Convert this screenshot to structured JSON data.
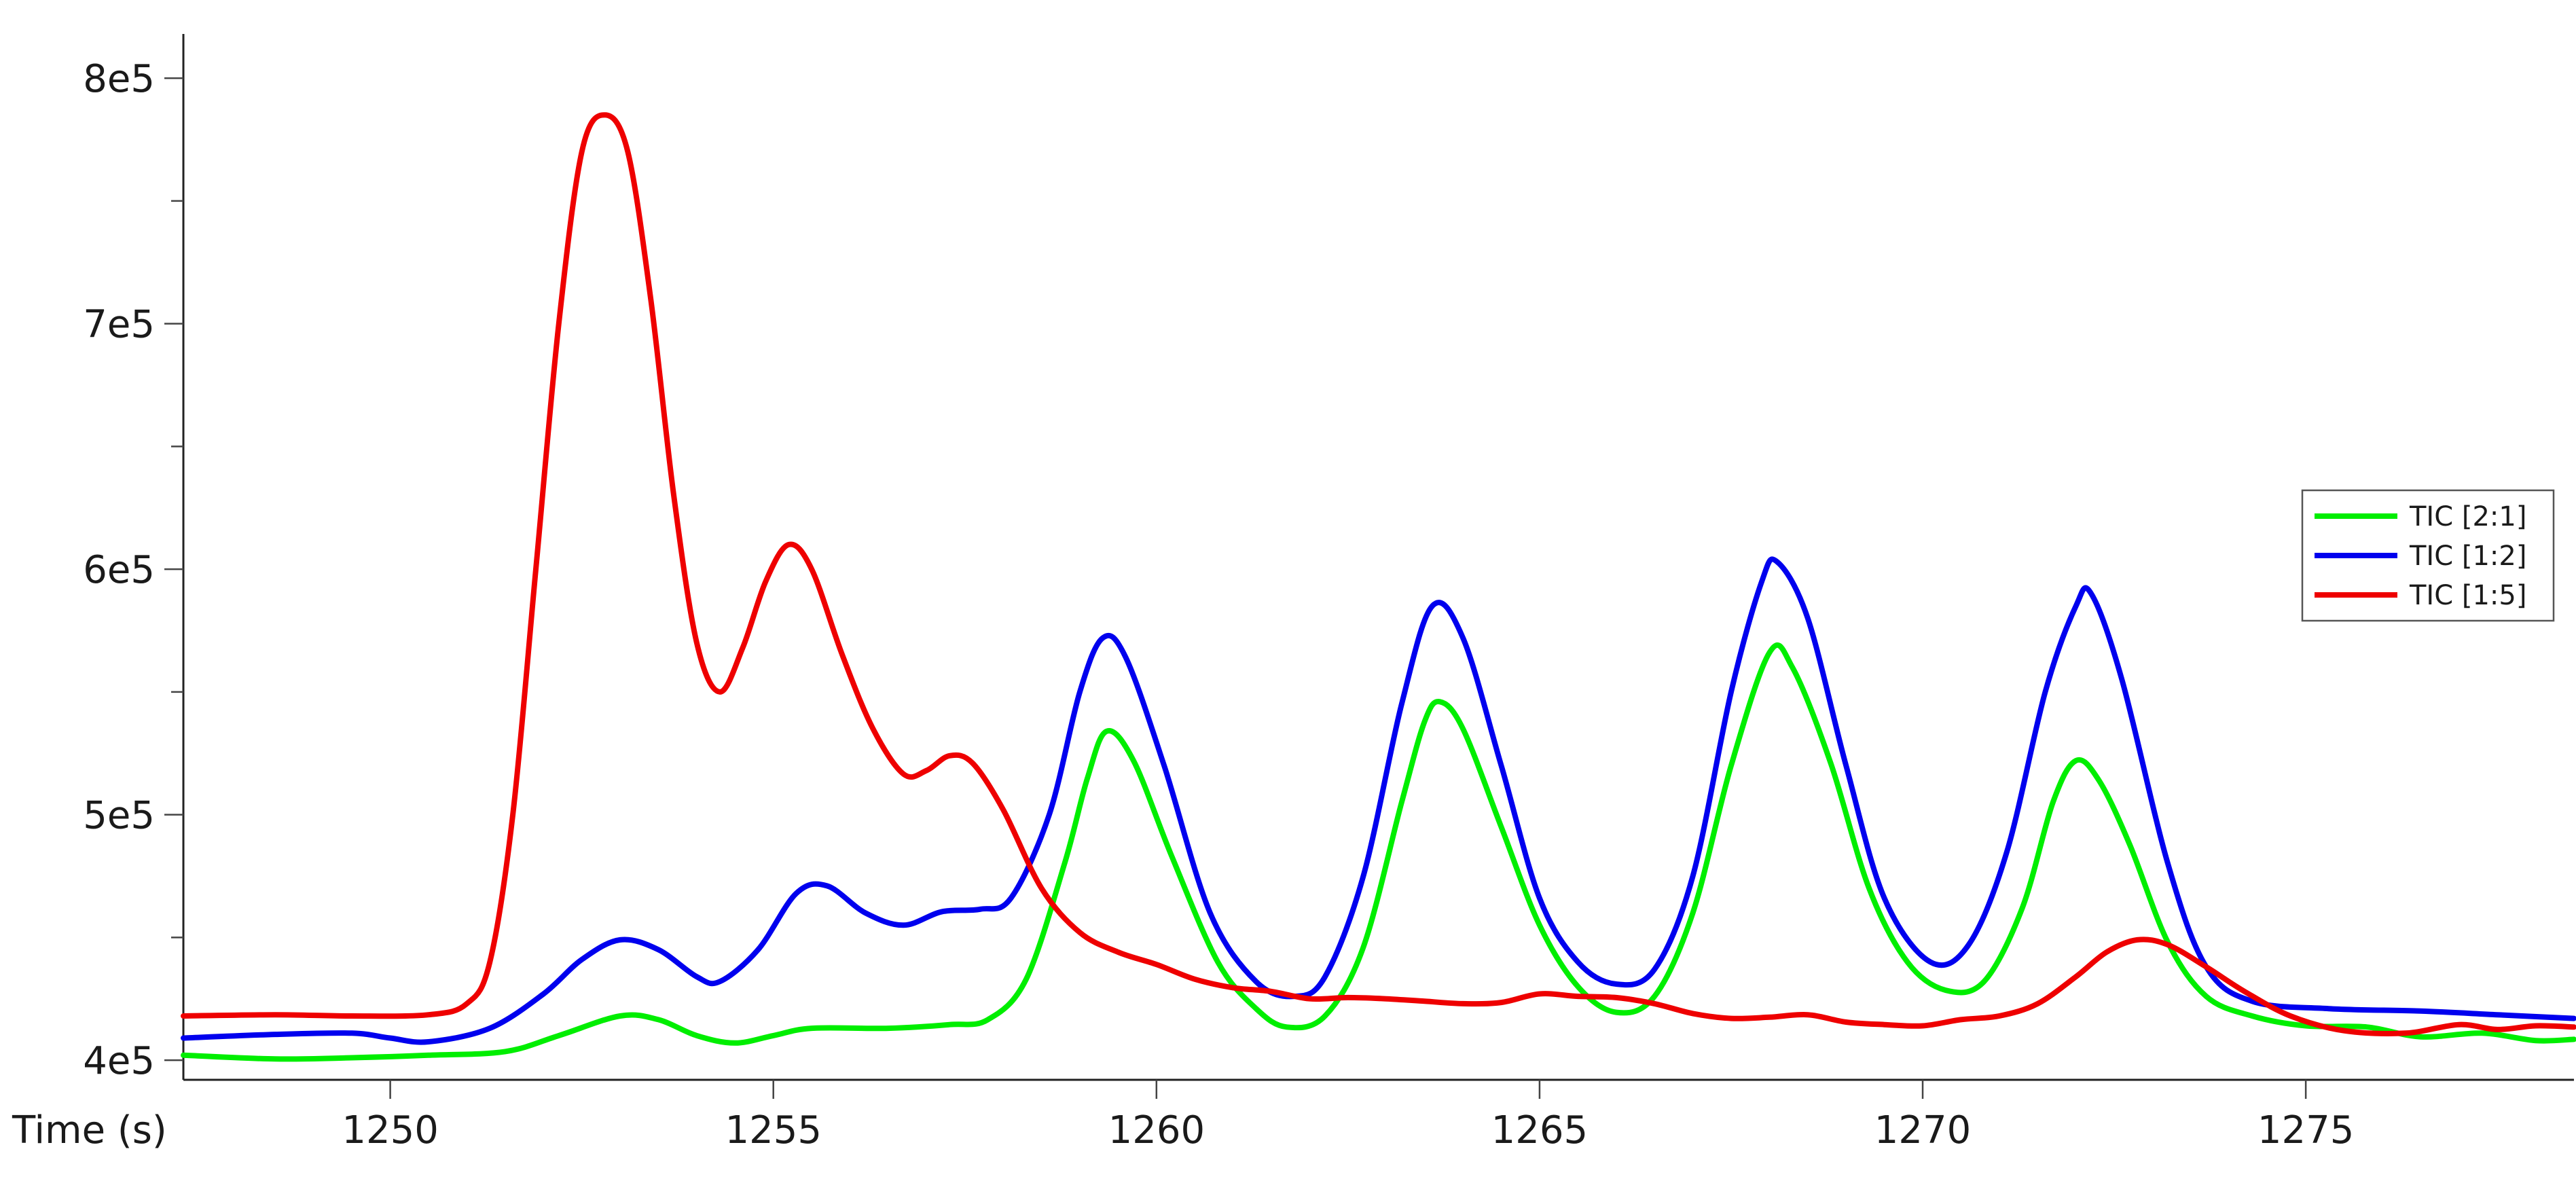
{
  "chart_data": {
    "type": "line",
    "title": "",
    "xlabel": "Time (s)",
    "ylabel": "",
    "xlim": [
      1247.3,
      1278.5
    ],
    "ylim": [
      392000,
      818000
    ],
    "x_ticks": [
      1250,
      1255,
      1260,
      1265,
      1270,
      1275
    ],
    "x_tick_labels": [
      "1250",
      "1255",
      "1260",
      "1265",
      "1270",
      "1275"
    ],
    "y_ticks": [
      400000,
      500000,
      600000,
      700000,
      800000
    ],
    "y_tick_labels": [
      "4e5",
      "5e5",
      "6e5",
      "7e5",
      "8e5"
    ],
    "y_minor_ticks": [
      450000,
      550000,
      650000,
      750000
    ],
    "grid": false,
    "legend_position": "right",
    "series": [
      {
        "name": "TIC [2:1]",
        "color": "#00ee00",
        "points": [
          [
            1247.3,
            402000
          ],
          [
            1248.5,
            400500
          ],
          [
            1249.5,
            401000
          ],
          [
            1250.5,
            402000
          ],
          [
            1251.5,
            403500
          ],
          [
            1252.2,
            410000
          ],
          [
            1253.0,
            418000
          ],
          [
            1253.5,
            416500
          ],
          [
            1254.0,
            410000
          ],
          [
            1254.5,
            407000
          ],
          [
            1255.0,
            410000
          ],
          [
            1255.5,
            413000
          ],
          [
            1256.5,
            413000
          ],
          [
            1257.3,
            414500
          ],
          [
            1257.8,
            416500
          ],
          [
            1258.3,
            433000
          ],
          [
            1258.8,
            480000
          ],
          [
            1259.1,
            515000
          ],
          [
            1259.35,
            534000
          ],
          [
            1259.7,
            522000
          ],
          [
            1260.2,
            483000
          ],
          [
            1260.8,
            440000
          ],
          [
            1261.3,
            421000
          ],
          [
            1261.7,
            413500
          ],
          [
            1262.2,
            418000
          ],
          [
            1262.7,
            446000
          ],
          [
            1263.2,
            505000
          ],
          [
            1263.5,
            538000
          ],
          [
            1263.7,
            546000
          ],
          [
            1264.0,
            535000
          ],
          [
            1264.5,
            495000
          ],
          [
            1265.0,
            455000
          ],
          [
            1265.5,
            430000
          ],
          [
            1266.0,
            419500
          ],
          [
            1266.5,
            426000
          ],
          [
            1267.0,
            460000
          ],
          [
            1267.5,
            520000
          ],
          [
            1268.0,
            566000
          ],
          [
            1268.3,
            560000
          ],
          [
            1268.8,
            521000
          ],
          [
            1269.3,
            470000
          ],
          [
            1269.8,
            440000
          ],
          [
            1270.3,
            428500
          ],
          [
            1270.8,
            432000
          ],
          [
            1271.3,
            462000
          ],
          [
            1271.7,
            505000
          ],
          [
            1272.0,
            522000
          ],
          [
            1272.3,
            514000
          ],
          [
            1272.7,
            488000
          ],
          [
            1273.2,
            448000
          ],
          [
            1273.7,
            426000
          ],
          [
            1274.3,
            418000
          ],
          [
            1275.0,
            414000
          ],
          [
            1275.8,
            413500
          ],
          [
            1276.5,
            409500
          ],
          [
            1277.3,
            411000
          ],
          [
            1278.0,
            408000
          ],
          [
            1278.5,
            408500
          ]
        ]
      },
      {
        "name": "TIC [1:2]",
        "color": "#0000ee",
        "points": [
          [
            1247.3,
            409000
          ],
          [
            1248.5,
            410500
          ],
          [
            1249.5,
            411000
          ],
          [
            1250.0,
            409000
          ],
          [
            1250.5,
            407500
          ],
          [
            1251.3,
            413000
          ],
          [
            1252.0,
            427000
          ],
          [
            1252.5,
            441000
          ],
          [
            1253.0,
            449000
          ],
          [
            1253.5,
            445000
          ],
          [
            1254.0,
            434000
          ],
          [
            1254.3,
            432000
          ],
          [
            1254.8,
            445000
          ],
          [
            1255.3,
            468000
          ],
          [
            1255.7,
            471000
          ],
          [
            1256.2,
            460000
          ],
          [
            1256.7,
            455000
          ],
          [
            1257.2,
            460500
          ],
          [
            1257.7,
            461500
          ],
          [
            1258.1,
            466000
          ],
          [
            1258.6,
            500000
          ],
          [
            1259.0,
            550000
          ],
          [
            1259.3,
            572000
          ],
          [
            1259.6,
            564000
          ],
          [
            1260.1,
            520000
          ],
          [
            1260.7,
            460000
          ],
          [
            1261.3,
            432000
          ],
          [
            1261.8,
            426000
          ],
          [
            1262.2,
            434000
          ],
          [
            1262.7,
            475000
          ],
          [
            1263.2,
            545000
          ],
          [
            1263.6,
            585000
          ],
          [
            1264.0,
            572000
          ],
          [
            1264.5,
            520000
          ],
          [
            1265.0,
            466000
          ],
          [
            1265.5,
            440000
          ],
          [
            1266.0,
            431000
          ],
          [
            1266.5,
            437000
          ],
          [
            1267.0,
            475000
          ],
          [
            1267.5,
            550000
          ],
          [
            1267.9,
            595000
          ],
          [
            1268.1,
            603000
          ],
          [
            1268.5,
            580000
          ],
          [
            1269.0,
            520000
          ],
          [
            1269.5,
            466000
          ],
          [
            1270.1,
            440000
          ],
          [
            1270.6,
            447000
          ],
          [
            1271.1,
            485000
          ],
          [
            1271.6,
            550000
          ],
          [
            1272.0,
            585000
          ],
          [
            1272.2,
            590000
          ],
          [
            1272.6,
            555000
          ],
          [
            1273.2,
            480000
          ],
          [
            1273.7,
            438000
          ],
          [
            1274.3,
            424000
          ],
          [
            1275.3,
            421000
          ],
          [
            1276.5,
            420000
          ],
          [
            1277.5,
            418500
          ],
          [
            1278.5,
            417000
          ]
        ]
      },
      {
        "name": "TIC [1:5]",
        "color": "#ee0000",
        "points": [
          [
            1247.3,
            418000
          ],
          [
            1248.5,
            418500
          ],
          [
            1249.5,
            418000
          ],
          [
            1250.5,
            418500
          ],
          [
            1251.0,
            423000
          ],
          [
            1251.3,
            440000
          ],
          [
            1251.6,
            500000
          ],
          [
            1251.9,
            600000
          ],
          [
            1252.2,
            700000
          ],
          [
            1252.5,
            770000
          ],
          [
            1252.8,
            785000
          ],
          [
            1253.1,
            770000
          ],
          [
            1253.4,
            710000
          ],
          [
            1253.7,
            630000
          ],
          [
            1254.0,
            570000
          ],
          [
            1254.3,
            550000
          ],
          [
            1254.6,
            568000
          ],
          [
            1254.9,
            595000
          ],
          [
            1255.2,
            610000
          ],
          [
            1255.5,
            600000
          ],
          [
            1255.9,
            565000
          ],
          [
            1256.3,
            535000
          ],
          [
            1256.7,
            516500
          ],
          [
            1257.0,
            518000
          ],
          [
            1257.3,
            524000
          ],
          [
            1257.6,
            521000
          ],
          [
            1258.0,
            502000
          ],
          [
            1258.5,
            470000
          ],
          [
            1259.0,
            452000
          ],
          [
            1259.5,
            444000
          ],
          [
            1260.0,
            439000
          ],
          [
            1260.5,
            433000
          ],
          [
            1261.0,
            429500
          ],
          [
            1261.5,
            428000
          ],
          [
            1262.0,
            425000
          ],
          [
            1262.5,
            425500
          ],
          [
            1263.0,
            425000
          ],
          [
            1263.5,
            424000
          ],
          [
            1264.0,
            423000
          ],
          [
            1264.5,
            423500
          ],
          [
            1265.0,
            427000
          ],
          [
            1265.5,
            426000
          ],
          [
            1266.0,
            425500
          ],
          [
            1266.5,
            423000
          ],
          [
            1267.0,
            419000
          ],
          [
            1267.5,
            417000
          ],
          [
            1268.0,
            417500
          ],
          [
            1268.5,
            418500
          ],
          [
            1269.0,
            415500
          ],
          [
            1269.5,
            414500
          ],
          [
            1270.0,
            414000
          ],
          [
            1270.5,
            416500
          ],
          [
            1271.0,
            418000
          ],
          [
            1271.5,
            423000
          ],
          [
            1272.0,
            434000
          ],
          [
            1272.4,
            444000
          ],
          [
            1272.8,
            449000
          ],
          [
            1273.2,
            447000
          ],
          [
            1273.7,
            438000
          ],
          [
            1274.2,
            428000
          ],
          [
            1274.8,
            418000
          ],
          [
            1275.5,
            412000
          ],
          [
            1276.3,
            411000
          ],
          [
            1277.0,
            414500
          ],
          [
            1277.5,
            412500
          ],
          [
            1278.0,
            414000
          ],
          [
            1278.5,
            413500
          ]
        ]
      }
    ]
  }
}
